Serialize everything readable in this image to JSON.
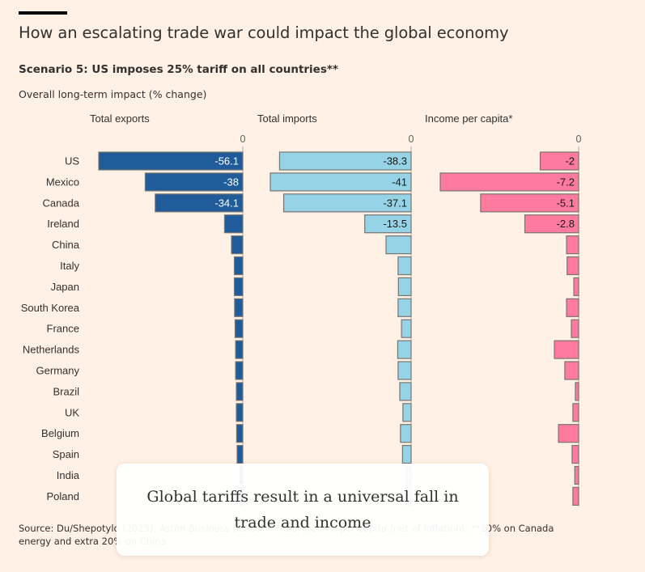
{
  "header": {
    "title": "How an escalating trade war could impact the global economy",
    "subtitle": "Scenario 5: US imposes 25% tariff on all countries**",
    "unit_label": "Overall long-term impact (% change)"
  },
  "chart_data": {
    "type": "bar",
    "orientation": "horizontal",
    "title": "How an escalating trade war could impact the global economy",
    "subtitle": "Scenario 5: US imposes 25% tariff on all countries**",
    "ylabel": "Overall long-term impact (% change)",
    "categories": [
      "US",
      "Mexico",
      "Canada",
      "Ireland",
      "China",
      "Italy",
      "Japan",
      "South Korea",
      "France",
      "Netherlands",
      "Germany",
      "Brazil",
      "UK",
      "Belgium",
      "Spain",
      "India",
      "Poland"
    ],
    "series": [
      {
        "name": "Total exports",
        "color": "#1f5c99",
        "values": [
          -56.1,
          -38,
          -34.1,
          -7.1,
          -4.4,
          -3.3,
          -3.3,
          -3.2,
          -3.0,
          -2.8,
          -2.8,
          -2.5,
          -2.5,
          -2.4,
          -2.2,
          -1.1,
          -1.1
        ],
        "labeled": [
          true,
          true,
          true,
          false,
          false,
          false,
          false,
          false,
          false,
          false,
          false,
          false,
          false,
          false,
          false,
          false,
          false
        ],
        "label_color": "#ffffff",
        "xlim": [
          -56.1,
          0
        ],
        "zero_tick": "0"
      },
      {
        "name": "Total imports",
        "color": "#96d3e6",
        "values": [
          -38.3,
          -41,
          -37.1,
          -13.5,
          -7.3,
          -3.8,
          -3.7,
          -3.8,
          -2.8,
          -3.9,
          -3.8,
          -3.3,
          -2.4,
          -3.1,
          -2.5,
          -1.4,
          -1.4
        ],
        "labeled": [
          true,
          true,
          true,
          true,
          false,
          false,
          false,
          false,
          false,
          false,
          false,
          false,
          false,
          false,
          false,
          false,
          false
        ],
        "label_color": "#1a1817",
        "xlim": [
          -41,
          0
        ],
        "zero_tick": "0"
      },
      {
        "name": "Income per capita*",
        "color": "#ff7a9f",
        "values": [
          -2,
          -7.2,
          -5.1,
          -2.8,
          -0.63,
          -0.6,
          -0.25,
          -0.63,
          -0.38,
          -1.26,
          -0.72,
          -0.17,
          -0.3,
          -1.05,
          -0.34,
          -0.2,
          -0.3
        ],
        "labeled": [
          true,
          true,
          true,
          true,
          false,
          false,
          false,
          false,
          false,
          false,
          false,
          false,
          false,
          false,
          false,
          false,
          false
        ],
        "label_color": "#1a1817",
        "xlim": [
          -7.2,
          0
        ],
        "zero_tick": "0"
      }
    ],
    "grid": false,
    "legend": "none"
  },
  "source": "Source: Du/Shepotylo (2025), Aston Business School • *Real income per capita (net of inflation). **10% on Canada energy and extra 20% on China",
  "overlay": {
    "caption": "Global tariffs result in a universal fall in trade and income"
  }
}
